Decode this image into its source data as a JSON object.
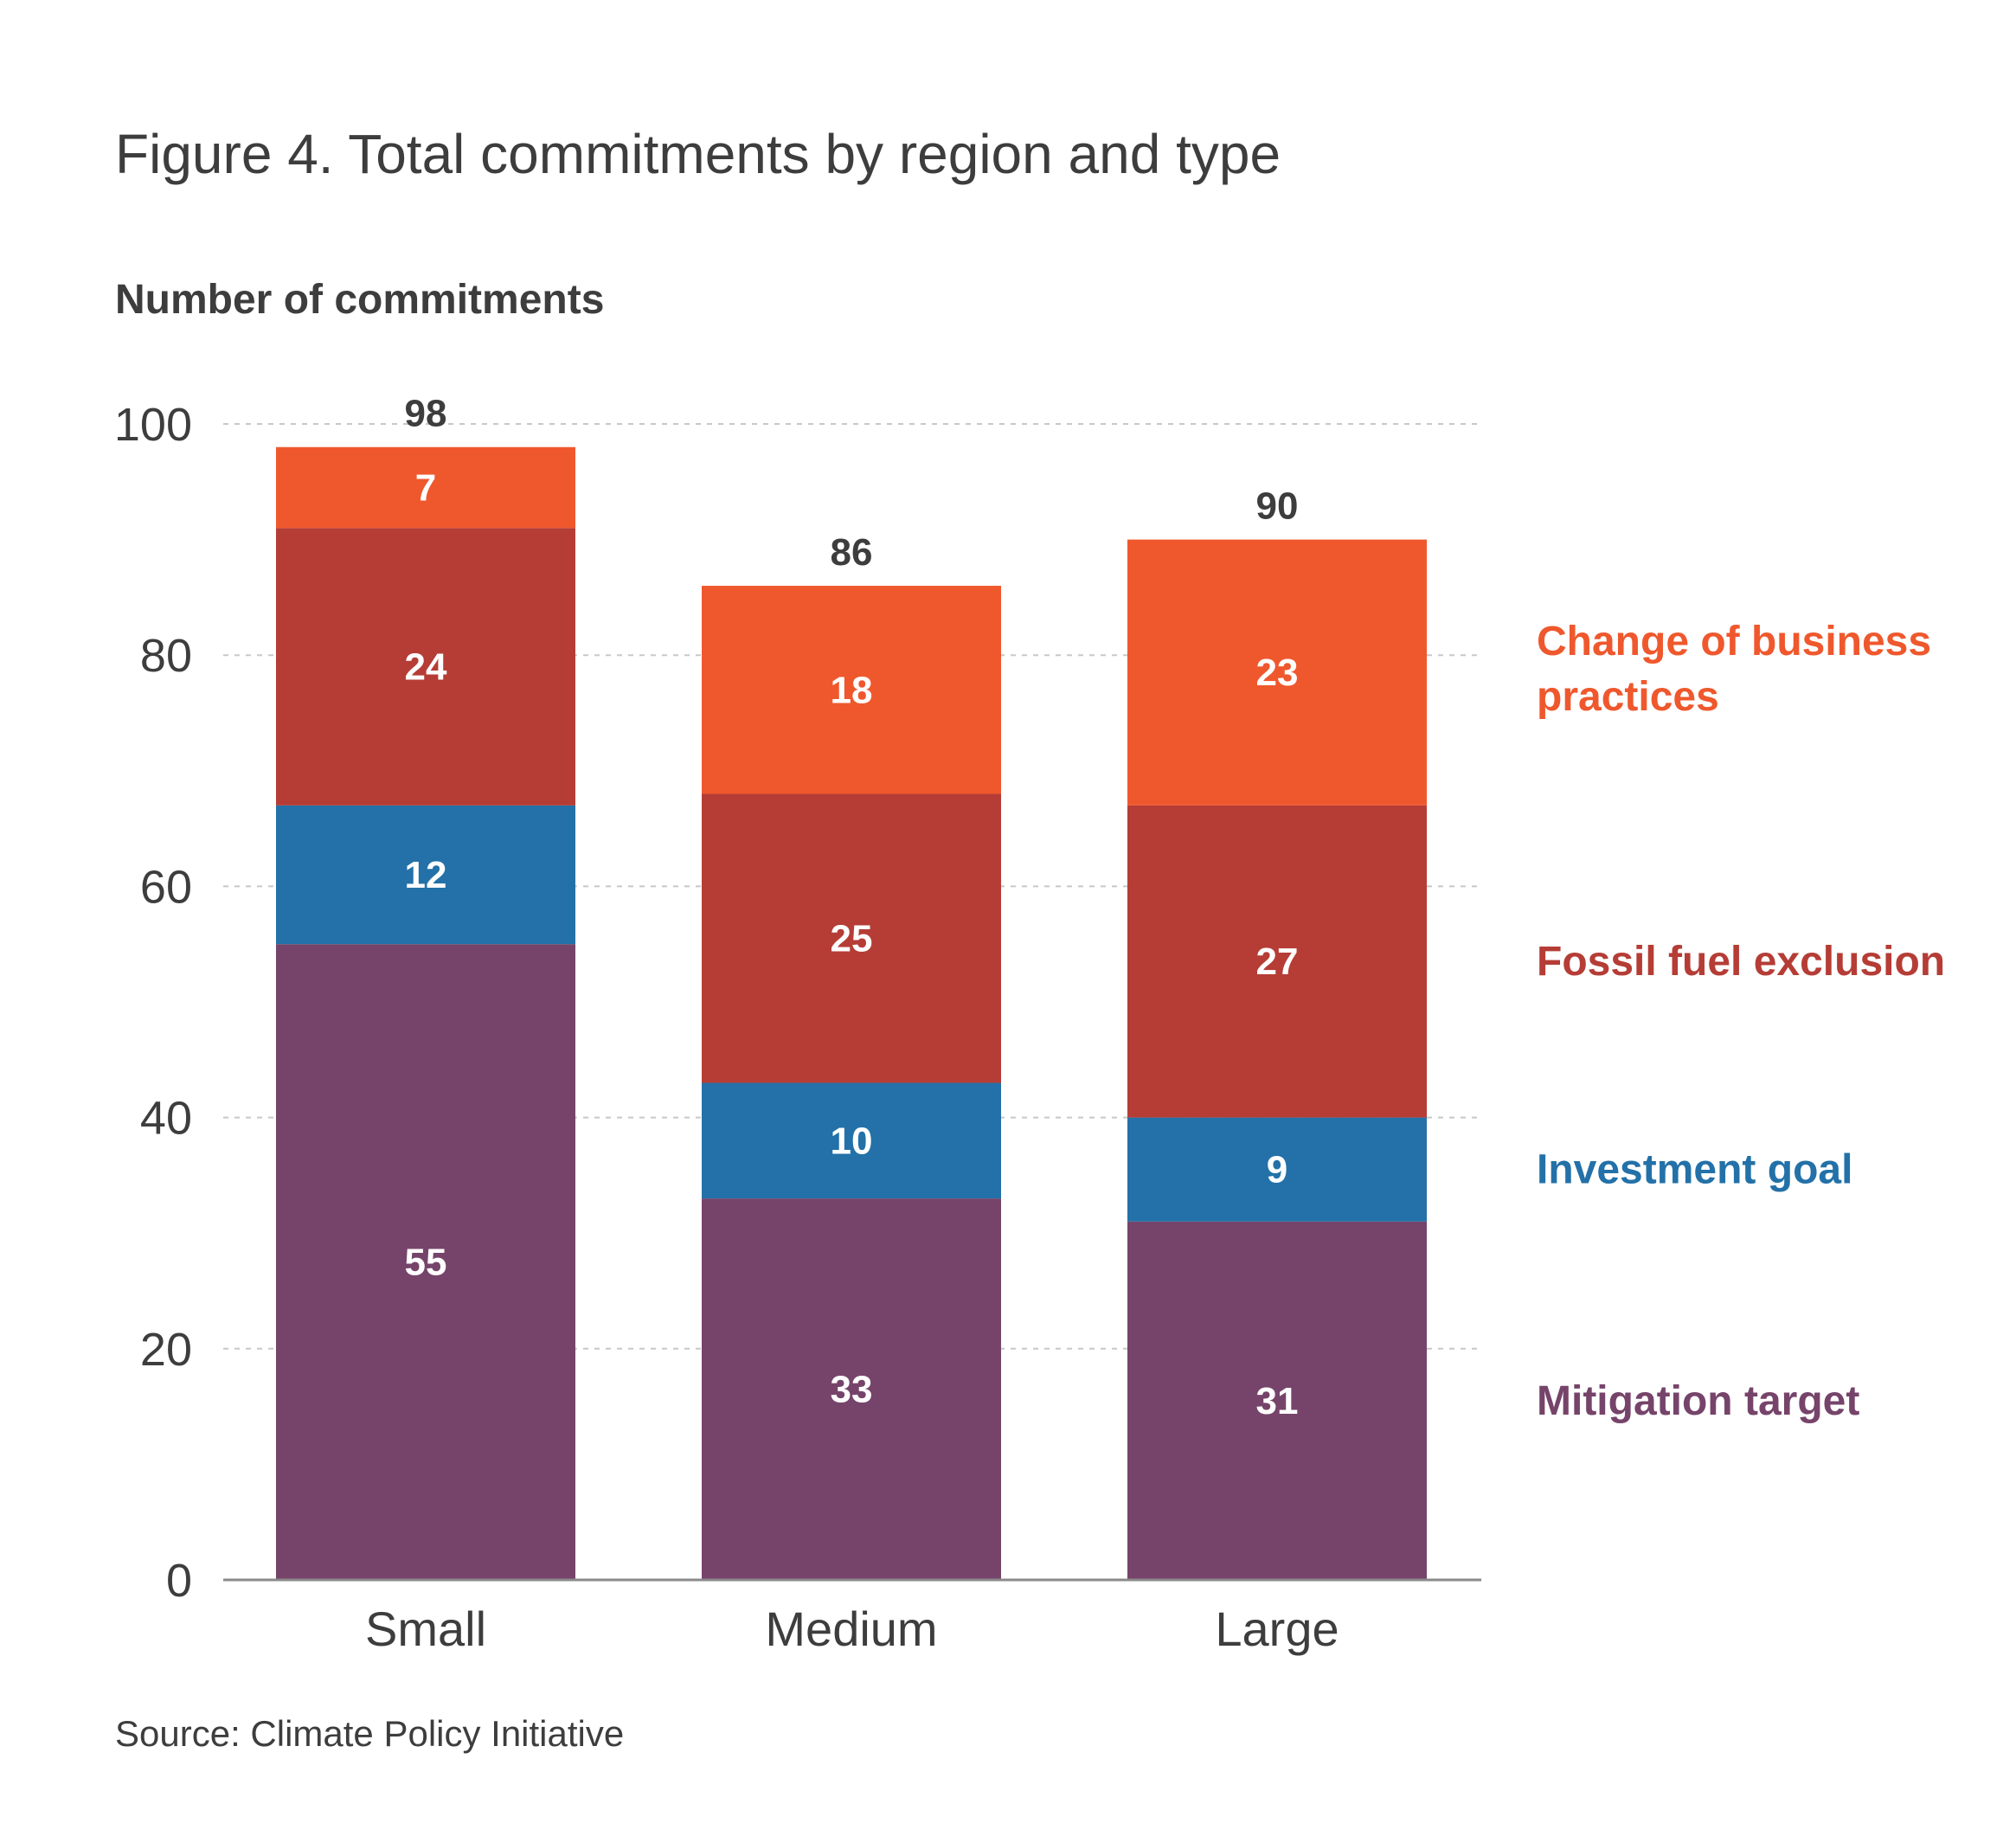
{
  "chart_data": {
    "type": "bar",
    "stacked": true,
    "title": "Figure 4. Total commitments by region and type",
    "ylabel": "Number of commitments",
    "xlabel": "",
    "categories": [
      "Small",
      "Medium",
      "Large"
    ],
    "series": [
      {
        "name": "Mitigation target",
        "values": [
          55,
          33,
          31
        ],
        "color": "#76446a"
      },
      {
        "name": "Investment goal",
        "values": [
          12,
          10,
          9
        ],
        "color": "#2371a8"
      },
      {
        "name": "Fossil fuel exclusion",
        "values": [
          24,
          25,
          27
        ],
        "color": "#b53d36"
      },
      {
        "name": "Change of business practices",
        "values": [
          7,
          18,
          23
        ],
        "color": "#ef582d"
      }
    ],
    "totals": [
      98,
      86,
      90
    ],
    "ylim": [
      0,
      100
    ],
    "yticks": [
      0,
      20,
      40,
      60,
      80,
      100
    ],
    "grid": true,
    "legend_placement": "right",
    "legend_lines": {
      "Mitigation target": [
        "Mitigation target"
      ],
      "Investment goal": [
        "Investment goal"
      ],
      "Fossil fuel exclusion": [
        "Fossil fuel exclusion"
      ],
      "Change of business practices": [
        "Change of business",
        "practices"
      ]
    },
    "source": "Source: Climate Policy Initiative"
  }
}
